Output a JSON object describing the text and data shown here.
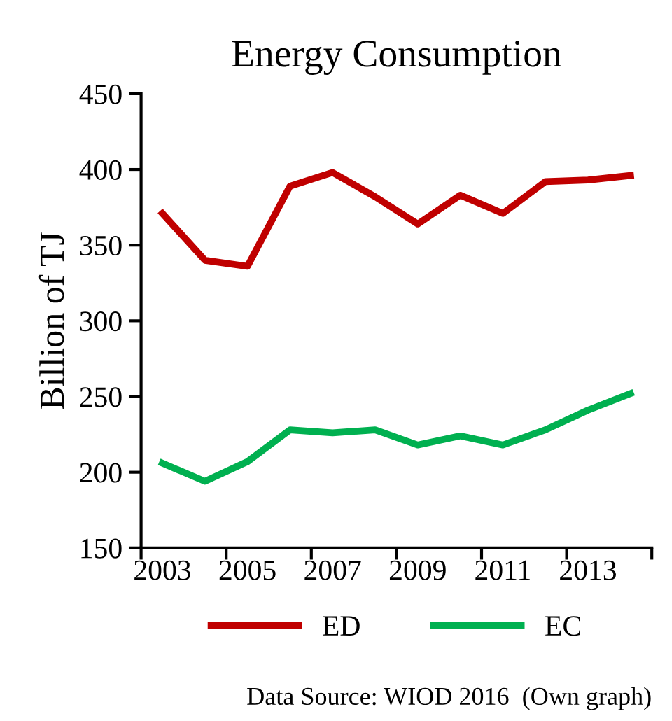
{
  "chart_data": {
    "type": "line",
    "title": "Energy Consumption",
    "ylabel": "Billion of TJ",
    "categories": [
      "2003",
      null,
      "2005",
      null,
      "2007",
      null,
      "2009",
      null,
      "2011",
      null,
      "2013",
      null
    ],
    "series": [
      {
        "name": "ED",
        "color": "#c00000",
        "values": [
          371,
          340,
          336,
          389,
          398,
          382,
          364,
          383,
          371,
          392,
          393,
          396
        ]
      },
      {
        "name": "EC",
        "color": "#00b050",
        "values": [
          206,
          194,
          207,
          228,
          226,
          228,
          218,
          224,
          218,
          228,
          241,
          252
        ]
      }
    ],
    "ylim": [
      150,
      450
    ],
    "yticks": [
      150,
      200,
      250,
      300,
      350,
      400,
      450
    ],
    "grid": false,
    "legend": "bottom",
    "marker": "none",
    "line_style": "solid",
    "annotations": [
      "Data Source: WIOD 2016  (Own graph)"
    ]
  }
}
